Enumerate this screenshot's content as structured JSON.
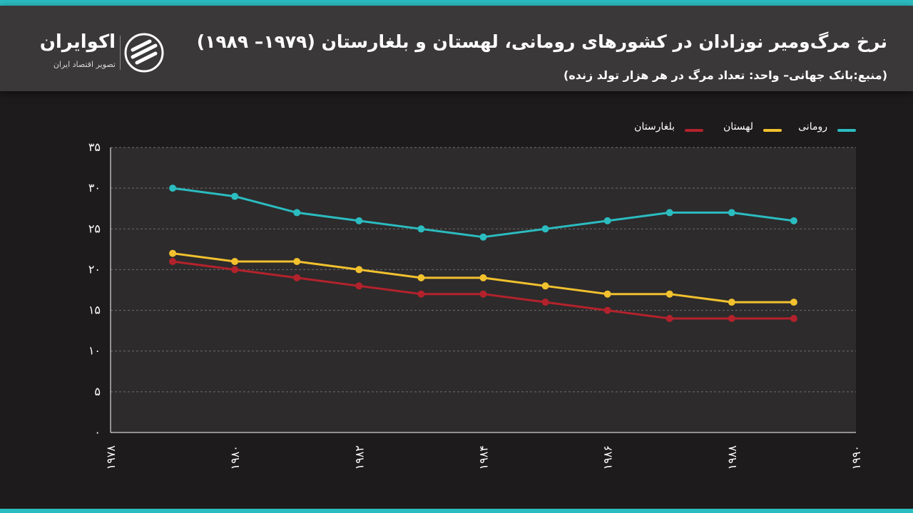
{
  "header": {
    "title": "نرخ مرگ‌ومیر نوزادان در کشورهای رومانی، لهستان و بلغارستان (۱۹۷۹– ۱۹۸۹)",
    "subtitle": "(منبع:بانک جهانی– واحد: تعداد مرگ در هر هزار تولد زنده)"
  },
  "brand": {
    "name": "اکوایران",
    "tagline": "تصویر اقتصاد ایران"
  },
  "colors": {
    "accent": "#2bbcc0",
    "romania": "#2bbcc0",
    "poland": "#f2c12e",
    "bulgaria": "#b3222c"
  },
  "chart_data": {
    "type": "line",
    "title": "نرخ مرگ‌ومیر نوزادان در کشورهای رومانی، لهستان و بلغارستان (۱۹۷۹– ۱۹۸۹)",
    "xlabel": "",
    "ylabel": "",
    "x": [
      1979,
      1980,
      1981,
      1982,
      1983,
      1984,
      1985,
      1986,
      1987,
      1988,
      1989
    ],
    "xlim": [
      1978,
      1990
    ],
    "ylim": [
      0,
      35
    ],
    "x_ticks": [
      1978,
      1980,
      1982,
      1984,
      1986,
      1988,
      1990
    ],
    "x_tick_labels": [
      "۱۹۷۸",
      "۱۹۸۰",
      "۱۹۸۲",
      "۱۹۸۴",
      "۱۹۸۶",
      "۱۹۸۸",
      "۱۹۹۰"
    ],
    "y_ticks": [
      0,
      5,
      10,
      15,
      20,
      25,
      30,
      35
    ],
    "y_tick_labels": [
      "۰",
      "۵",
      "۱۰",
      "۱۵",
      "۲۰",
      "۲۵",
      "۳۰",
      "۳۵"
    ],
    "grid": true,
    "legend_position": "top-right",
    "series": [
      {
        "name": "رومانی",
        "color": "#2bbcc0",
        "values": [
          30,
          29,
          27,
          26,
          25,
          24,
          25,
          26,
          27,
          27,
          26
        ]
      },
      {
        "name": "لهستان",
        "color": "#f2c12e",
        "values": [
          22,
          21,
          21,
          20,
          19,
          19,
          18,
          17,
          17,
          16,
          16
        ]
      },
      {
        "name": "بلغارستان",
        "color": "#b3222c",
        "values": [
          21,
          20,
          19,
          18,
          17,
          17,
          16,
          15,
          14,
          14,
          14
        ]
      }
    ]
  }
}
